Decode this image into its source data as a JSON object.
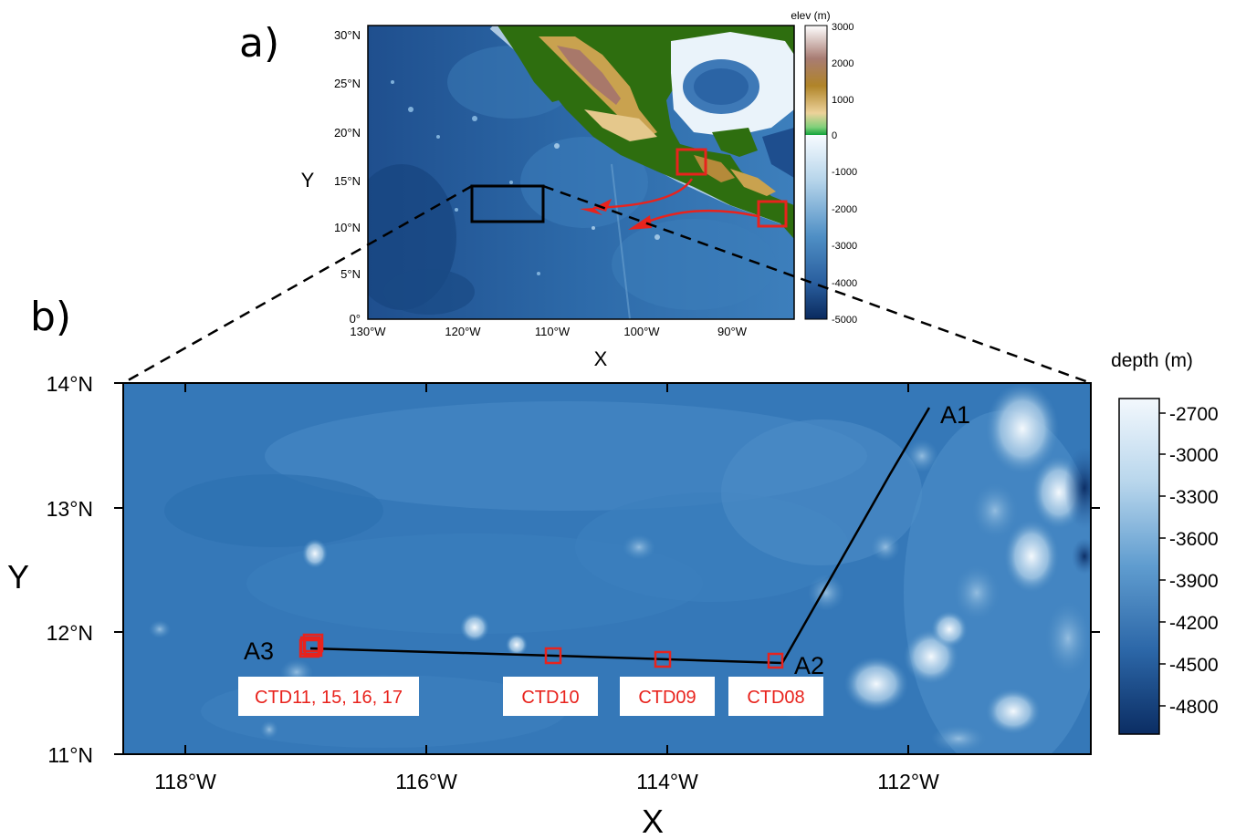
{
  "panel_a": {
    "label": "a)",
    "y_ticks": [
      "30°N",
      "25°N",
      "20°N",
      "15°N",
      "10°N",
      "5°N",
      "0°"
    ],
    "x_ticks": [
      "130°W",
      "120°W",
      "110°W",
      "100°W",
      "90°W"
    ],
    "x_label": "X",
    "y_label": "Y",
    "colorbar_title": "elev (m)",
    "colorbar_ticks": [
      "3000",
      "2000",
      "1000",
      "0",
      "-1000",
      "-2000",
      "-3000",
      "-4000",
      "-5000"
    ],
    "land_colors": [
      "#ffffff",
      "#a87c73",
      "#b5892a",
      "#e6c584",
      "#2eae4a"
    ],
    "ocean_colors": [
      "#f2f7fc",
      "#9fc6e4",
      "#4a8fc6",
      "#2a62a3",
      "#0d2f66"
    ],
    "box_color_study": "#000000",
    "box_color_source": "#e8231d",
    "arrow_color": "#e8231d"
  },
  "panel_b": {
    "label": "b)",
    "y_ticks": [
      "14°N",
      "13°N",
      "12°N",
      "11°N"
    ],
    "x_ticks": [
      "118°W",
      "116°W",
      "114°W",
      "112°W"
    ],
    "x_label": "X",
    "y_label": "Y",
    "colorbar_title": "depth (m)",
    "colorbar_ticks": [
      "-2700",
      "-3000",
      "-3300",
      "-3600",
      "-3900",
      "-4200",
      "-4500",
      "-4800"
    ],
    "points": {
      "a1": "A1",
      "a2": "A2",
      "a3": "A3"
    },
    "ctd_labels": {
      "ctd11": "CTD11, 15, 16, 17",
      "ctd10": "CTD10",
      "ctd09": "CTD09",
      "ctd08": "CTD08"
    },
    "station_color": "#e8231d"
  }
}
